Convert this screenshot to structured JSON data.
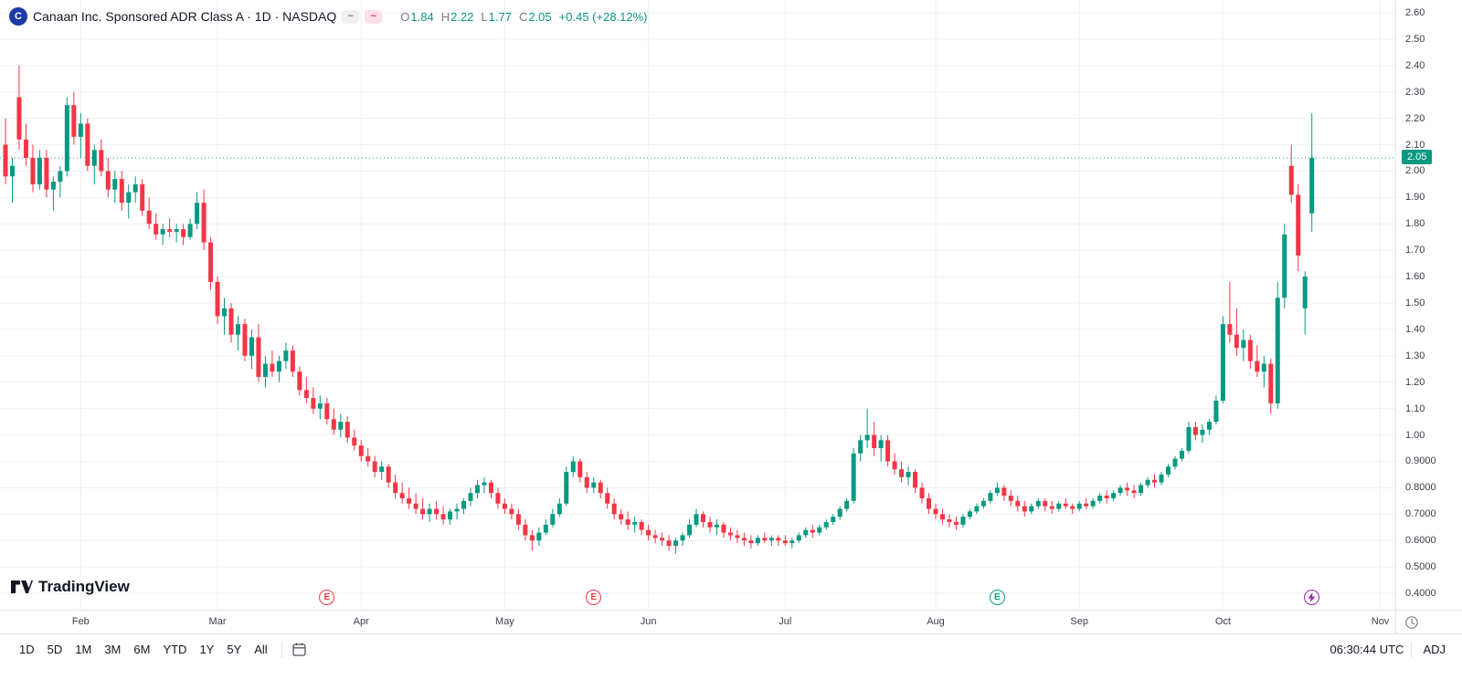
{
  "header": {
    "logo_letter": "C",
    "symbol_title": "Canaan Inc. Sponsored ADR Class A · 1D · NASDAQ",
    "status_glyph": "~",
    "delayed_glyph": "~",
    "ohlc": {
      "o_label": "O",
      "o": "1.84",
      "h_label": "H",
      "h": "2.22",
      "l_label": "L",
      "l": "1.77",
      "c_label": "C",
      "c": "2.05",
      "change": "+0.45 (+28.12%)"
    }
  },
  "brand": {
    "name": "TradingView"
  },
  "price_axis": {
    "labels": [
      "2.60",
      "2.50",
      "2.40",
      "2.30",
      "2.20",
      "2.10",
      "2.00",
      "1.90",
      "1.80",
      "1.70",
      "1.60",
      "1.50",
      "1.40",
      "1.30",
      "1.20",
      "1.10",
      "1.00",
      "0.9000",
      "0.8000",
      "0.7000",
      "0.6000",
      "0.5000",
      "0.4000"
    ],
    "last_price": "2.05"
  },
  "markers": [
    {
      "kind": "earnings",
      "letter": "E",
      "color": "#f23645",
      "index": 47
    },
    {
      "kind": "earnings",
      "letter": "E",
      "color": "#f23645",
      "index": 86
    },
    {
      "kind": "earnings",
      "letter": "E",
      "color": "#089981",
      "index": 145
    },
    {
      "kind": "event",
      "icon": "lightning-icon",
      "color": "#9c27b0",
      "index": 191
    }
  ],
  "toolbar": {
    "ranges": [
      "1D",
      "5D",
      "1M",
      "3M",
      "6M",
      "YTD",
      "1Y",
      "5Y",
      "All"
    ],
    "time": "06:30:44 UTC",
    "adj": "ADJ"
  },
  "colors": {
    "up": "#089981",
    "down": "#f23645",
    "grid": "#eef1f6",
    "axis_text": "#3a3e47",
    "border": "#e0e3eb",
    "badge": "#089981",
    "logo_blue": "#1b3aa5",
    "marker_purple": "#9c27b0"
  },
  "chart_data": {
    "type": "candlestick",
    "title": "Canaan Inc. Sponsored ADR Class A",
    "exchange": "NASDAQ",
    "interval": "1D",
    "ylim": [
      0.4,
      2.6
    ],
    "y_ticks": [
      0.4,
      0.5,
      0.6,
      0.7,
      0.8,
      0.9,
      1.0,
      1.1,
      1.2,
      1.3,
      1.4,
      1.5,
      1.6,
      1.7,
      1.8,
      1.9,
      2.0,
      2.1,
      2.2,
      2.3,
      2.4,
      2.5,
      2.6
    ],
    "grid": true,
    "x_slots": 204,
    "month_ticks": [
      {
        "label": "Feb",
        "index": 11
      },
      {
        "label": "Mar",
        "index": 31
      },
      {
        "label": "Apr",
        "index": 52
      },
      {
        "label": "May",
        "index": 73
      },
      {
        "label": "Jun",
        "index": 94
      },
      {
        "label": "Jul",
        "index": 114
      },
      {
        "label": "Aug",
        "index": 136
      },
      {
        "label": "Sep",
        "index": 157
      },
      {
        "label": "Oct",
        "index": 178
      },
      {
        "label": "Nov",
        "index": 201
      }
    ],
    "last": {
      "open": 1.84,
      "high": 2.22,
      "low": 1.77,
      "close": 2.05,
      "change": "+0.45",
      "change_pct": "+28.12%"
    },
    "candles": [
      [
        2.1,
        2.2,
        1.95,
        1.98
      ],
      [
        1.98,
        2.05,
        1.88,
        2.02
      ],
      [
        2.28,
        2.4,
        2.08,
        2.12
      ],
      [
        2.12,
        2.18,
        2.02,
        2.05
      ],
      [
        2.05,
        2.1,
        1.92,
        1.95
      ],
      [
        1.95,
        2.08,
        1.93,
        2.05
      ],
      [
        2.05,
        2.08,
        1.9,
        1.93
      ],
      [
        1.93,
        1.98,
        1.85,
        1.96
      ],
      [
        1.96,
        2.02,
        1.9,
        2.0
      ],
      [
        2.0,
        2.28,
        1.98,
        2.25
      ],
      [
        2.25,
        2.3,
        2.1,
        2.13
      ],
      [
        2.13,
        2.22,
        2.05,
        2.18
      ],
      [
        2.18,
        2.2,
        2.0,
        2.02
      ],
      [
        2.02,
        2.1,
        1.95,
        2.08
      ],
      [
        2.08,
        2.12,
        1.98,
        2.0
      ],
      [
        2.0,
        2.05,
        1.9,
        1.93
      ],
      [
        1.93,
        2.0,
        1.88,
        1.97
      ],
      [
        1.97,
        2.0,
        1.85,
        1.88
      ],
      [
        1.88,
        1.95,
        1.82,
        1.92
      ],
      [
        1.92,
        1.98,
        1.88,
        1.95
      ],
      [
        1.95,
        1.97,
        1.83,
        1.85
      ],
      [
        1.85,
        1.9,
        1.78,
        1.8
      ],
      [
        1.8,
        1.84,
        1.74,
        1.76
      ],
      [
        1.76,
        1.8,
        1.72,
        1.78
      ],
      [
        1.78,
        1.82,
        1.75,
        1.77
      ],
      [
        1.77,
        1.8,
        1.73,
        1.78
      ],
      [
        1.78,
        1.8,
        1.72,
        1.75
      ],
      [
        1.75,
        1.82,
        1.74,
        1.8
      ],
      [
        1.8,
        1.92,
        1.78,
        1.88
      ],
      [
        1.88,
        1.93,
        1.7,
        1.73
      ],
      [
        1.73,
        1.75,
        1.55,
        1.58
      ],
      [
        1.58,
        1.6,
        1.42,
        1.45
      ],
      [
        1.45,
        1.52,
        1.38,
        1.48
      ],
      [
        1.48,
        1.5,
        1.35,
        1.38
      ],
      [
        1.38,
        1.45,
        1.32,
        1.42
      ],
      [
        1.42,
        1.44,
        1.28,
        1.3
      ],
      [
        1.3,
        1.4,
        1.25,
        1.37
      ],
      [
        1.37,
        1.42,
        1.2,
        1.22
      ],
      [
        1.22,
        1.3,
        1.18,
        1.27
      ],
      [
        1.27,
        1.32,
        1.22,
        1.24
      ],
      [
        1.24,
        1.3,
        1.2,
        1.28
      ],
      [
        1.28,
        1.35,
        1.25,
        1.32
      ],
      [
        1.32,
        1.34,
        1.22,
        1.24
      ],
      [
        1.24,
        1.26,
        1.15,
        1.17
      ],
      [
        1.17,
        1.22,
        1.12,
        1.14
      ],
      [
        1.14,
        1.18,
        1.08,
        1.1
      ],
      [
        1.1,
        1.15,
        1.06,
        1.12
      ],
      [
        1.12,
        1.14,
        1.04,
        1.06
      ],
      [
        1.06,
        1.1,
        1.0,
        1.02
      ],
      [
        1.02,
        1.08,
        0.99,
        1.05
      ],
      [
        1.05,
        1.07,
        0.97,
        0.99
      ],
      [
        0.99,
        1.02,
        0.94,
        0.96
      ],
      [
        0.96,
        0.98,
        0.9,
        0.92
      ],
      [
        0.92,
        0.95,
        0.88,
        0.9
      ],
      [
        0.9,
        0.92,
        0.84,
        0.86
      ],
      [
        0.86,
        0.9,
        0.83,
        0.88
      ],
      [
        0.88,
        0.89,
        0.8,
        0.82
      ],
      [
        0.82,
        0.85,
        0.76,
        0.78
      ],
      [
        0.78,
        0.82,
        0.74,
        0.76
      ],
      [
        0.76,
        0.8,
        0.72,
        0.74
      ],
      [
        0.74,
        0.78,
        0.7,
        0.72
      ],
      [
        0.72,
        0.76,
        0.68,
        0.7
      ],
      [
        0.7,
        0.74,
        0.67,
        0.72
      ],
      [
        0.72,
        0.75,
        0.68,
        0.7
      ],
      [
        0.7,
        0.73,
        0.66,
        0.68
      ],
      [
        0.68,
        0.72,
        0.66,
        0.71
      ],
      [
        0.71,
        0.74,
        0.68,
        0.72
      ],
      [
        0.72,
        0.76,
        0.7,
        0.75
      ],
      [
        0.75,
        0.8,
        0.73,
        0.78
      ],
      [
        0.78,
        0.83,
        0.76,
        0.81
      ],
      [
        0.81,
        0.84,
        0.78,
        0.82
      ],
      [
        0.82,
        0.83,
        0.76,
        0.78
      ],
      [
        0.78,
        0.8,
        0.72,
        0.74
      ],
      [
        0.74,
        0.76,
        0.7,
        0.72
      ],
      [
        0.72,
        0.74,
        0.68,
        0.7
      ],
      [
        0.7,
        0.72,
        0.64,
        0.66
      ],
      [
        0.66,
        0.68,
        0.6,
        0.62
      ],
      [
        0.62,
        0.64,
        0.56,
        0.6
      ],
      [
        0.6,
        0.65,
        0.58,
        0.63
      ],
      [
        0.63,
        0.68,
        0.62,
        0.66
      ],
      [
        0.66,
        0.72,
        0.65,
        0.7
      ],
      [
        0.7,
        0.76,
        0.69,
        0.74
      ],
      [
        0.74,
        0.88,
        0.73,
        0.86
      ],
      [
        0.86,
        0.92,
        0.84,
        0.9
      ],
      [
        0.9,
        0.91,
        0.82,
        0.84
      ],
      [
        0.84,
        0.86,
        0.78,
        0.8
      ],
      [
        0.8,
        0.84,
        0.78,
        0.82
      ],
      [
        0.82,
        0.83,
        0.76,
        0.78
      ],
      [
        0.78,
        0.8,
        0.72,
        0.74
      ],
      [
        0.74,
        0.76,
        0.68,
        0.7
      ],
      [
        0.7,
        0.72,
        0.66,
        0.68
      ],
      [
        0.68,
        0.71,
        0.64,
        0.66
      ],
      [
        0.66,
        0.69,
        0.63,
        0.67
      ],
      [
        0.67,
        0.68,
        0.62,
        0.64
      ],
      [
        0.64,
        0.66,
        0.6,
        0.62
      ],
      [
        0.62,
        0.64,
        0.59,
        0.61
      ],
      [
        0.61,
        0.63,
        0.58,
        0.6
      ],
      [
        0.6,
        0.62,
        0.56,
        0.58
      ],
      [
        0.58,
        0.61,
        0.55,
        0.6
      ],
      [
        0.6,
        0.63,
        0.58,
        0.62
      ],
      [
        0.62,
        0.68,
        0.61,
        0.66
      ],
      [
        0.66,
        0.72,
        0.65,
        0.7
      ],
      [
        0.7,
        0.71,
        0.65,
        0.67
      ],
      [
        0.67,
        0.69,
        0.63,
        0.65
      ],
      [
        0.65,
        0.68,
        0.62,
        0.66
      ],
      [
        0.66,
        0.67,
        0.61,
        0.63
      ],
      [
        0.63,
        0.65,
        0.6,
        0.62
      ],
      [
        0.62,
        0.64,
        0.59,
        0.61
      ],
      [
        0.61,
        0.63,
        0.58,
        0.6
      ],
      [
        0.6,
        0.62,
        0.57,
        0.59
      ],
      [
        0.59,
        0.62,
        0.58,
        0.61
      ],
      [
        0.61,
        0.63,
        0.59,
        0.6
      ],
      [
        0.6,
        0.62,
        0.58,
        0.61
      ],
      [
        0.61,
        0.62,
        0.58,
        0.6
      ],
      [
        0.6,
        0.62,
        0.58,
        0.59
      ],
      [
        0.59,
        0.61,
        0.57,
        0.6
      ],
      [
        0.6,
        0.63,
        0.59,
        0.62
      ],
      [
        0.62,
        0.65,
        0.61,
        0.64
      ],
      [
        0.64,
        0.66,
        0.61,
        0.63
      ],
      [
        0.63,
        0.66,
        0.62,
        0.65
      ],
      [
        0.65,
        0.68,
        0.64,
        0.67
      ],
      [
        0.67,
        0.7,
        0.66,
        0.69
      ],
      [
        0.69,
        0.73,
        0.68,
        0.72
      ],
      [
        0.72,
        0.76,
        0.71,
        0.75
      ],
      [
        0.75,
        0.95,
        0.74,
        0.93
      ],
      [
        0.93,
        1.0,
        0.9,
        0.98
      ],
      [
        0.98,
        1.1,
        0.95,
        1.0
      ],
      [
        1.0,
        1.05,
        0.92,
        0.95
      ],
      [
        0.95,
        1.0,
        0.9,
        0.98
      ],
      [
        0.98,
        1.0,
        0.88,
        0.9
      ],
      [
        0.9,
        0.93,
        0.85,
        0.87
      ],
      [
        0.87,
        0.9,
        0.82,
        0.84
      ],
      [
        0.84,
        0.88,
        0.81,
        0.86
      ],
      [
        0.86,
        0.87,
        0.78,
        0.8
      ],
      [
        0.8,
        0.82,
        0.74,
        0.76
      ],
      [
        0.76,
        0.78,
        0.7,
        0.72
      ],
      [
        0.72,
        0.74,
        0.68,
        0.7
      ],
      [
        0.7,
        0.72,
        0.66,
        0.68
      ],
      [
        0.68,
        0.7,
        0.65,
        0.67
      ],
      [
        0.67,
        0.69,
        0.64,
        0.66
      ],
      [
        0.66,
        0.7,
        0.65,
        0.69
      ],
      [
        0.69,
        0.72,
        0.68,
        0.71
      ],
      [
        0.71,
        0.74,
        0.7,
        0.73
      ],
      [
        0.73,
        0.76,
        0.72,
        0.75
      ],
      [
        0.75,
        0.79,
        0.74,
        0.78
      ],
      [
        0.78,
        0.82,
        0.77,
        0.8
      ],
      [
        0.8,
        0.81,
        0.75,
        0.77
      ],
      [
        0.77,
        0.79,
        0.73,
        0.75
      ],
      [
        0.75,
        0.77,
        0.71,
        0.73
      ],
      [
        0.73,
        0.75,
        0.69,
        0.71
      ],
      [
        0.71,
        0.74,
        0.7,
        0.73
      ],
      [
        0.73,
        0.76,
        0.72,
        0.75
      ],
      [
        0.75,
        0.76,
        0.71,
        0.73
      ],
      [
        0.73,
        0.75,
        0.7,
        0.72
      ],
      [
        0.72,
        0.75,
        0.71,
        0.74
      ],
      [
        0.74,
        0.76,
        0.72,
        0.73
      ],
      [
        0.73,
        0.74,
        0.7,
        0.72
      ],
      [
        0.72,
        0.75,
        0.71,
        0.74
      ],
      [
        0.74,
        0.76,
        0.72,
        0.73
      ],
      [
        0.73,
        0.76,
        0.72,
        0.75
      ],
      [
        0.75,
        0.78,
        0.74,
        0.77
      ],
      [
        0.77,
        0.79,
        0.74,
        0.76
      ],
      [
        0.76,
        0.79,
        0.75,
        0.78
      ],
      [
        0.78,
        0.81,
        0.77,
        0.8
      ],
      [
        0.8,
        0.82,
        0.77,
        0.79
      ],
      [
        0.79,
        0.81,
        0.76,
        0.78
      ],
      [
        0.78,
        0.82,
        0.77,
        0.81
      ],
      [
        0.81,
        0.84,
        0.8,
        0.83
      ],
      [
        0.83,
        0.85,
        0.8,
        0.82
      ],
      [
        0.82,
        0.86,
        0.81,
        0.85
      ],
      [
        0.85,
        0.89,
        0.84,
        0.88
      ],
      [
        0.88,
        0.92,
        0.87,
        0.91
      ],
      [
        0.91,
        0.95,
        0.9,
        0.94
      ],
      [
        0.94,
        1.05,
        0.93,
        1.03
      ],
      [
        1.03,
        1.05,
        0.98,
        1.0
      ],
      [
        1.0,
        1.04,
        0.97,
        1.02
      ],
      [
        1.02,
        1.06,
        1.0,
        1.05
      ],
      [
        1.05,
        1.15,
        1.04,
        1.13
      ],
      [
        1.13,
        1.45,
        1.12,
        1.42
      ],
      [
        1.42,
        1.58,
        1.35,
        1.38
      ],
      [
        1.38,
        1.48,
        1.3,
        1.33
      ],
      [
        1.33,
        1.4,
        1.28,
        1.36
      ],
      [
        1.36,
        1.38,
        1.25,
        1.28
      ],
      [
        1.28,
        1.34,
        1.22,
        1.24
      ],
      [
        1.24,
        1.3,
        1.18,
        1.27
      ],
      [
        1.27,
        1.29,
        1.08,
        1.12
      ],
      [
        1.12,
        1.58,
        1.1,
        1.52
      ],
      [
        1.52,
        1.8,
        1.48,
        1.76
      ],
      [
        2.02,
        2.1,
        1.88,
        1.91
      ],
      [
        1.91,
        1.95,
        1.62,
        1.68
      ],
      [
        1.48,
        1.62,
        1.38,
        1.6
      ],
      [
        1.84,
        2.22,
        1.77,
        2.05
      ]
    ]
  }
}
